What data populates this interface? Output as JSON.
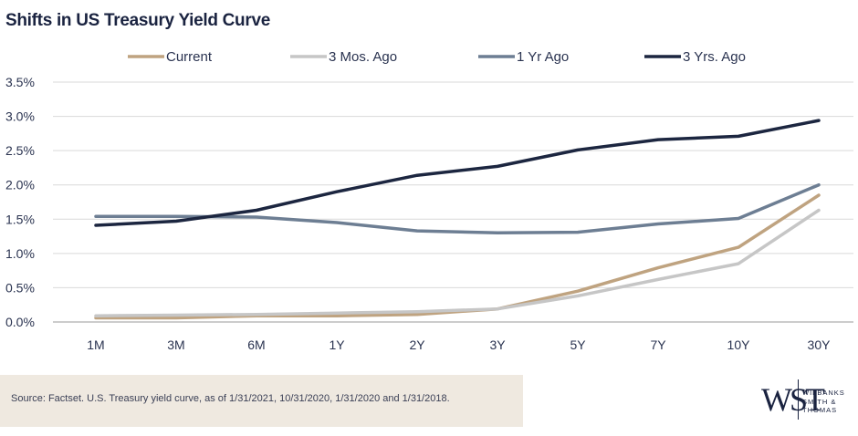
{
  "title": "Shifts in US Treasury Yield Curve",
  "source": "Source: Factset. U.S. Treasury yield curve, as of 1/31/2021, 10/31/2020, 1/31/2020 and 1/31/2018.",
  "logo": {
    "mark": "WST",
    "lines": [
      "WILBANKS",
      "SMITH &",
      "THOMAS"
    ]
  },
  "chart_data": {
    "type": "line",
    "categories": [
      "1M",
      "3M",
      "6M",
      "1Y",
      "2Y",
      "3Y",
      "5Y",
      "7Y",
      "10Y",
      "30Y"
    ],
    "y_ticks": [
      "0.0%",
      "0.5%",
      "1.0%",
      "1.5%",
      "2.0%",
      "2.5%",
      "3.0%",
      "3.5%"
    ],
    "ylim": [
      0,
      3.5
    ],
    "grid": true,
    "legend_position": "top",
    "series": [
      {
        "name": "Current",
        "color": "#bfa380",
        "values": [
          0.06,
          0.06,
          0.09,
          0.09,
          0.11,
          0.19,
          0.45,
          0.79,
          1.09,
          1.85
        ]
      },
      {
        "name": "3 Mos. Ago",
        "color": "#c6c6c6",
        "values": [
          0.09,
          0.1,
          0.11,
          0.13,
          0.15,
          0.19,
          0.38,
          0.62,
          0.85,
          1.63
        ]
      },
      {
        "name": "1 Yr Ago",
        "color": "#6d7e93",
        "values": [
          1.54,
          1.54,
          1.53,
          1.45,
          1.33,
          1.3,
          1.31,
          1.43,
          1.51,
          2.0
        ]
      },
      {
        "name": "3 Yrs. Ago",
        "color": "#1c2640",
        "values": [
          1.41,
          1.47,
          1.63,
          1.9,
          2.14,
          2.27,
          2.51,
          2.66,
          2.71,
          2.94
        ]
      }
    ]
  }
}
